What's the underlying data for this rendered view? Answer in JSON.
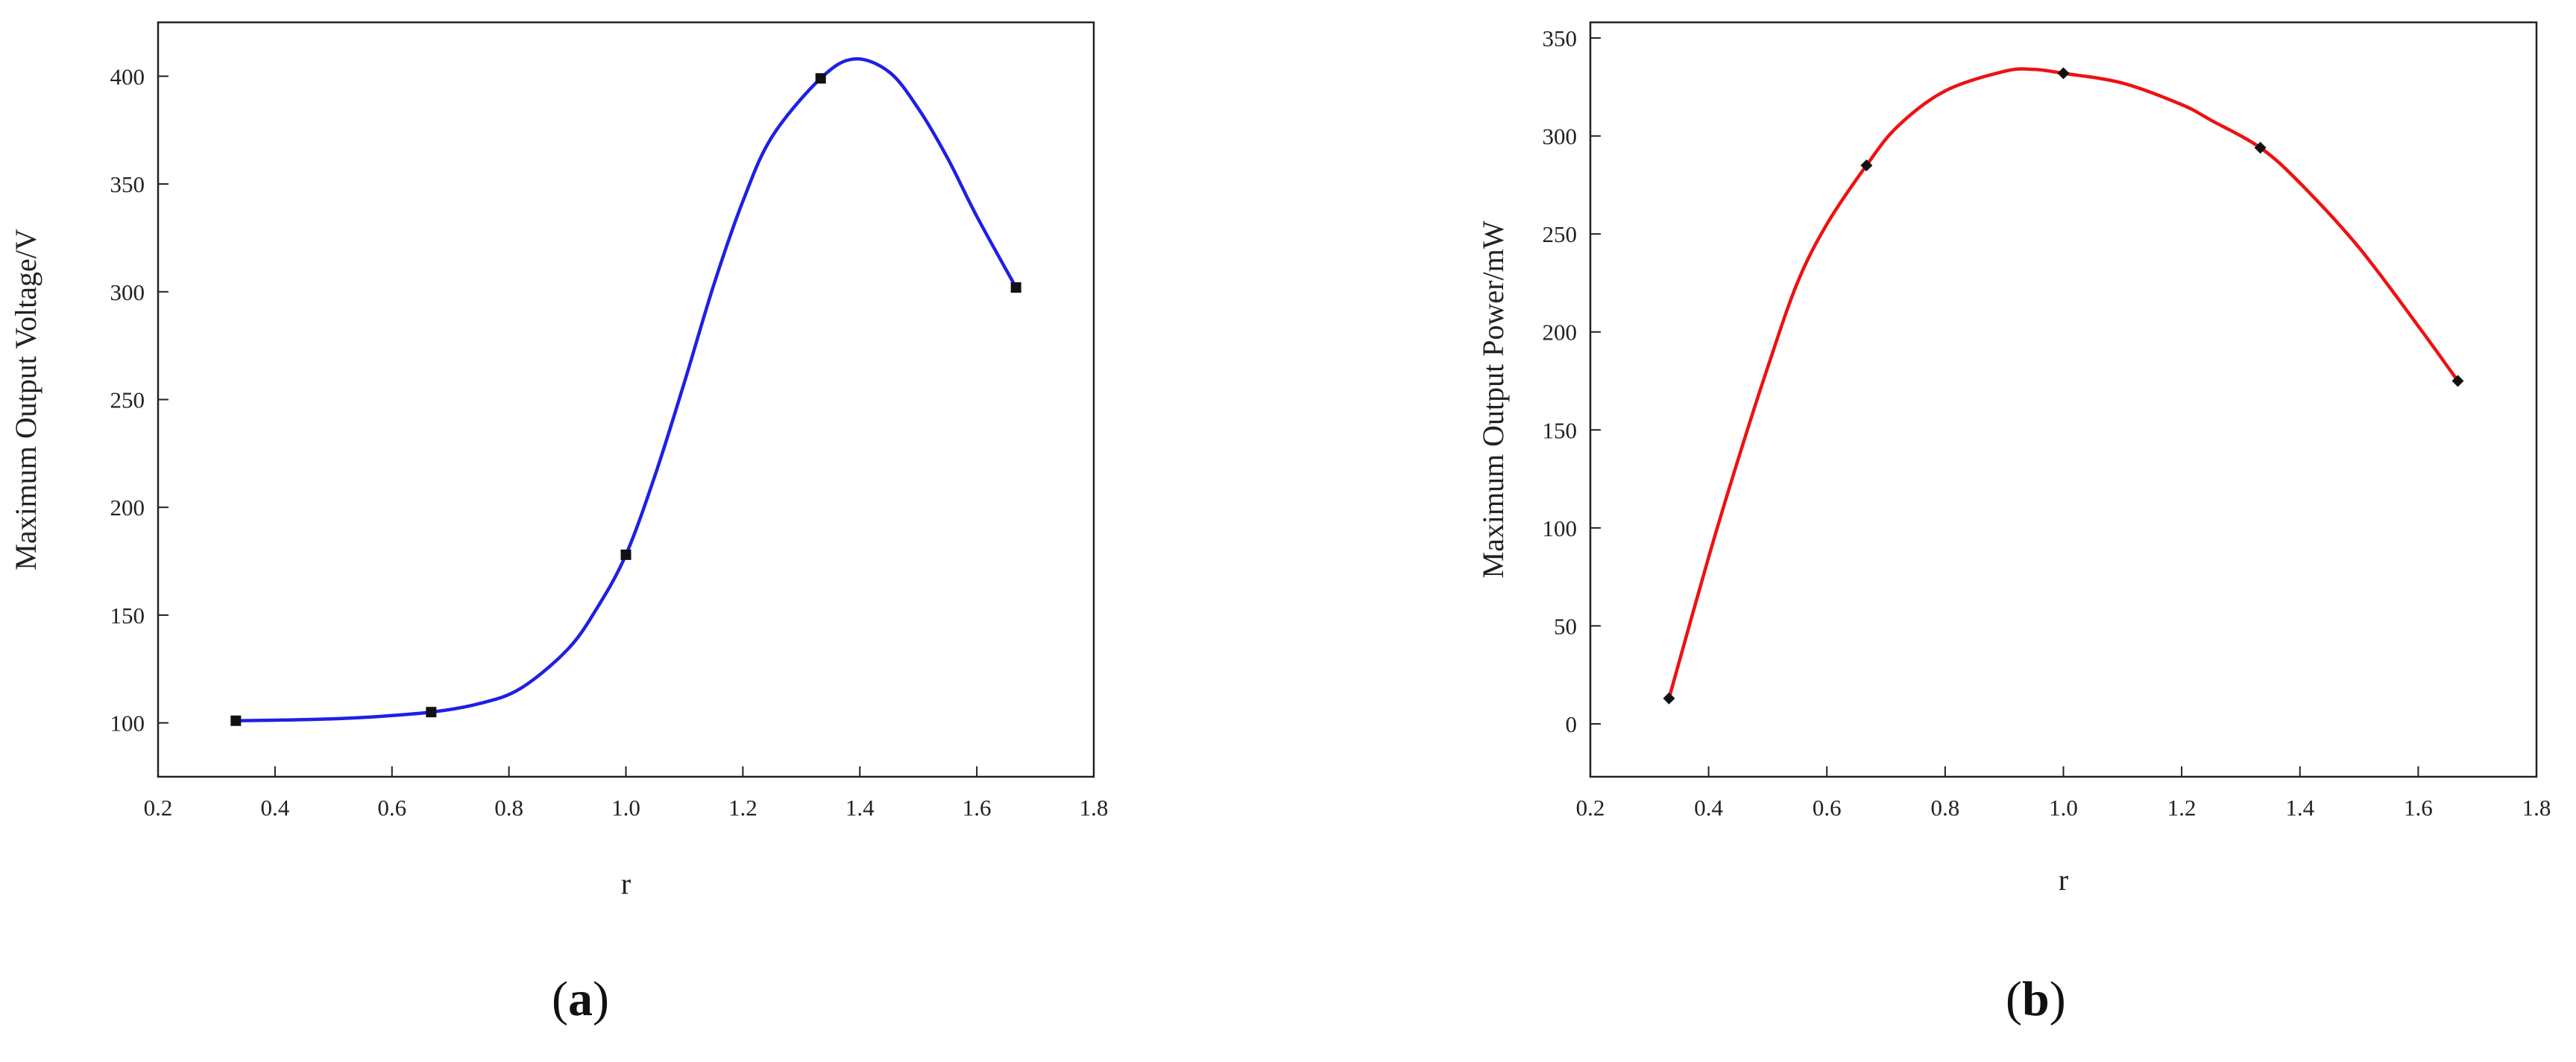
{
  "chart_data": [
    {
      "type": "line",
      "panel_label": "a",
      "xlabel": "r",
      "ylabel": "Maximum Output Voltage/V",
      "xlim": [
        0.2,
        1.8
      ],
      "ylim": [
        75,
        425
      ],
      "xticks": [
        "0.2",
        "0.4",
        "0.6",
        "0.8",
        "1.0",
        "1.2",
        "1.4",
        "1.6",
        "1.8"
      ],
      "yticks": [
        "100",
        "150",
        "200",
        "250",
        "300",
        "350",
        "400"
      ],
      "grid": false,
      "series": [
        {
          "color": "#1f1fe6",
          "marker_color": "#111111",
          "x": [
            0.333,
            0.667,
            1.0,
            1.333,
            1.667
          ],
          "y": [
            101,
            105,
            178,
            399,
            302
          ],
          "curve": [
            [
              0.333,
              101
            ],
            [
              0.45,
              101.5
            ],
            [
              0.55,
              102.5
            ],
            [
              0.667,
              105
            ],
            [
              0.75,
              109
            ],
            [
              0.82,
              116
            ],
            [
              0.9,
              134
            ],
            [
              0.95,
              153
            ],
            [
              1.0,
              178
            ],
            [
              1.05,
              215
            ],
            [
              1.1,
              258
            ],
            [
              1.15,
              303
            ],
            [
              1.2,
              342
            ],
            [
              1.25,
              372
            ],
            [
              1.333,
              399
            ],
            [
              1.39,
              408
            ],
            [
              1.45,
              402
            ],
            [
              1.5,
              385
            ],
            [
              1.55,
              362
            ],
            [
              1.6,
              335
            ],
            [
              1.667,
              302
            ]
          ]
        }
      ]
    },
    {
      "type": "line",
      "panel_label": "b",
      "xlabel": "r",
      "ylabel": "Maximum Output Power/mW",
      "xlim": [
        0.2,
        1.8
      ],
      "ylim": [
        -27,
        358
      ],
      "xticks": [
        "0.2",
        "0.4",
        "0.6",
        "0.8",
        "1.0",
        "1.2",
        "1.4",
        "1.6",
        "1.8"
      ],
      "yticks": [
        "0",
        "50",
        "100",
        "150",
        "200",
        "250",
        "300",
        "350"
      ],
      "grid": false,
      "series": [
        {
          "color": "#ee1111",
          "marker_color": "#111111",
          "x": [
            0.333,
            0.667,
            1.0,
            1.333,
            1.667
          ],
          "y": [
            13,
            285,
            332,
            294,
            175
          ],
          "curve": [
            [
              0.333,
              13
            ],
            [
              0.4,
              85
            ],
            [
              0.45,
              135
            ],
            [
              0.5,
              182
            ],
            [
              0.55,
              225
            ],
            [
              0.6,
              255
            ],
            [
              0.667,
              285
            ],
            [
              0.72,
              305
            ],
            [
              0.8,
              323
            ],
            [
              0.9,
              333
            ],
            [
              0.95,
              334
            ],
            [
              1.0,
              332
            ],
            [
              1.1,
              327
            ],
            [
              1.2,
              316
            ],
            [
              1.25,
              308
            ],
            [
              1.333,
              294
            ],
            [
              1.4,
              276
            ],
            [
              1.5,
              243
            ],
            [
              1.6,
              203
            ],
            [
              1.667,
              175
            ]
          ]
        }
      ]
    }
  ]
}
